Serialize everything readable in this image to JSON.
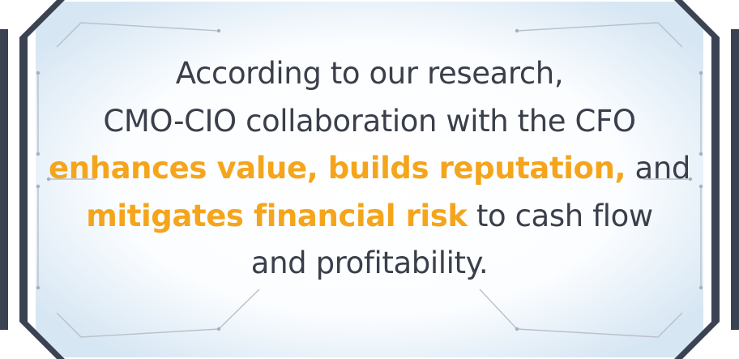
{
  "callout": {
    "lines": [
      {
        "plain": "According to our research,"
      },
      {
        "plain": "CMO-CIO collaboration with the CFO"
      },
      {
        "highlight": "enhances value, builds reputation,",
        "plain": " and"
      },
      {
        "highlight": "mitigates financial risk",
        "plain": " to cash flow"
      },
      {
        "plain": "and profitability."
      }
    ]
  },
  "colors": {
    "text": "#3a3f4b",
    "highlight": "#f4a51c",
    "frame_dark": "#3b4252",
    "frame_line": "#b9c0c9",
    "panel_glow": "#d6e6f3"
  }
}
